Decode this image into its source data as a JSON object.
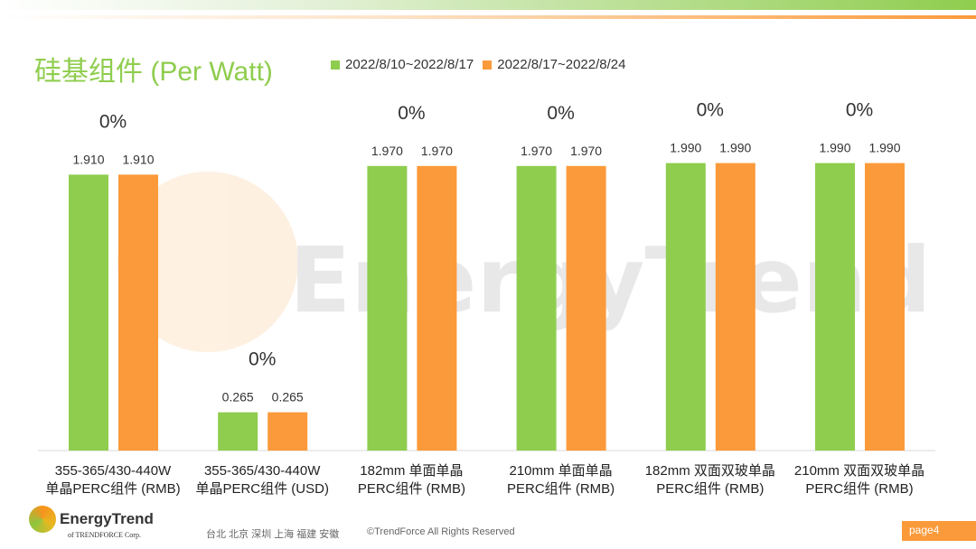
{
  "title": "硅基组件 (Per Watt)",
  "colors": {
    "green": "#8fcd4e",
    "orange": "#fb9a3a"
  },
  "chart_data": {
    "type": "bar",
    "title": "硅基组件 (Per Watt)",
    "categories": [
      [
        "355-365/430-440W",
        "单晶PERC组件 (RMB)"
      ],
      [
        "355-365/430-440W",
        "单晶PERC组件 (USD)"
      ],
      [
        "182mm 单面单晶",
        "PERC组件 (RMB)"
      ],
      [
        "210mm 单面单晶",
        "PERC组件 (RMB)"
      ],
      [
        "182mm 双面双玻单晶",
        "PERC组件 (RMB)"
      ],
      [
        "210mm 双面双玻单晶",
        "PERC组件 (RMB)"
      ]
    ],
    "series": [
      {
        "name": "2022/8/10~2022/8/17",
        "values": [
          1.91,
          0.265,
          1.97,
          1.97,
          1.99,
          1.99
        ]
      },
      {
        "name": "2022/8/17~2022/8/24",
        "values": [
          1.91,
          0.265,
          1.97,
          1.97,
          1.99,
          1.99
        ]
      }
    ],
    "value_labels": [
      [
        "1.910",
        "0.265",
        "1.970",
        "1.970",
        "1.990",
        "1.990"
      ],
      [
        "1.910",
        "0.265",
        "1.970",
        "1.970",
        "1.990",
        "1.990"
      ]
    ],
    "change_labels": [
      "0%",
      "0%",
      "0%",
      "0%",
      "0%",
      "0%"
    ],
    "legend": "top",
    "ylim": [
      0,
      2.3
    ]
  },
  "watermark": "EnergyTrend",
  "footer": {
    "logo_name": "EnergyTrend",
    "logo_sub": "of TRENDFORCE Corp.",
    "cities": "台北  北京  深圳  上海  福建  安徽",
    "copyright": "©TrendForce All Rights Reserved",
    "page": "page4"
  }
}
